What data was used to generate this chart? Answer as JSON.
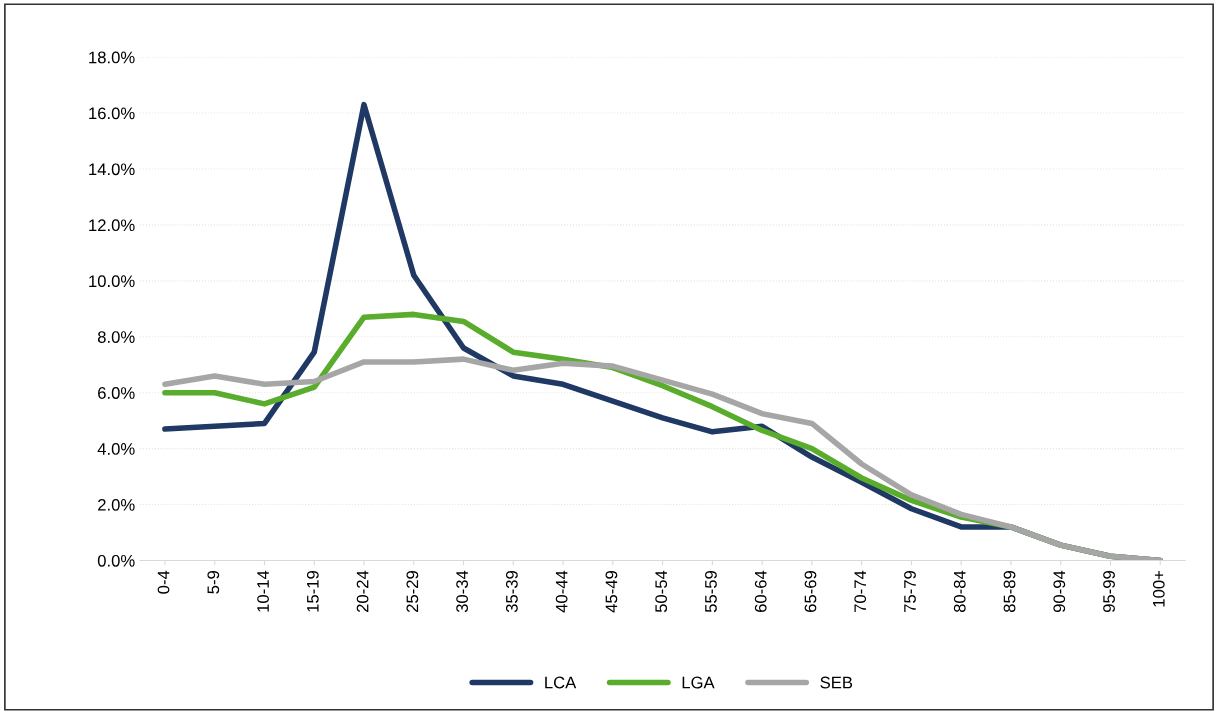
{
  "chart_data": {
    "type": "line",
    "categories": [
      "0-4",
      "5-9",
      "10-14",
      "15-19",
      "20-24",
      "25-29",
      "30-34",
      "35-39",
      "40-44",
      "45-49",
      "50-54",
      "55-59",
      "60-64",
      "65-69",
      "70-74",
      "75-79",
      "80-84",
      "85-89",
      "90-94",
      "95-99",
      "100+"
    ],
    "series": [
      {
        "name": "LCA",
        "color": "#1f3864",
        "values": [
          4.7,
          4.8,
          4.9,
          7.45,
          16.3,
          10.2,
          7.6,
          6.6,
          6.3,
          5.7,
          5.1,
          4.6,
          4.8,
          3.7,
          2.8,
          1.85,
          1.2,
          1.2,
          0.55,
          0.15,
          0.0
        ]
      },
      {
        "name": "LGA",
        "color": "#5aac2c",
        "values": [
          6.0,
          6.0,
          5.6,
          6.2,
          8.7,
          8.8,
          8.55,
          7.45,
          7.2,
          6.9,
          6.25,
          5.5,
          4.65,
          4.0,
          2.95,
          2.15,
          1.55,
          1.2,
          0.55,
          0.15,
          0.0
        ]
      },
      {
        "name": "SEB",
        "color": "#a6a6a6",
        "values": [
          6.3,
          6.6,
          6.3,
          6.4,
          7.1,
          7.1,
          7.2,
          6.8,
          7.05,
          6.95,
          6.45,
          5.95,
          5.25,
          4.9,
          3.45,
          2.35,
          1.65,
          1.2,
          0.55,
          0.15,
          0.0
        ]
      }
    ],
    "ylim": [
      0,
      18
    ],
    "yticks": [
      {
        "value": 0,
        "label": "0.0%"
      },
      {
        "value": 2,
        "label": "2.0%"
      },
      {
        "value": 4,
        "label": "4.0%"
      },
      {
        "value": 6,
        "label": "6.0%"
      },
      {
        "value": 8,
        "label": "8.0%"
      },
      {
        "value": 10,
        "label": "10.0%"
      },
      {
        "value": 12,
        "label": "12.0%"
      },
      {
        "value": 14,
        "label": "14.0%"
      },
      {
        "value": 16,
        "label": "16.0%"
      },
      {
        "value": 18,
        "label": "18.0%"
      }
    ],
    "grid": "y",
    "legend": "bottom",
    "marker": "none",
    "line_style": "solid"
  }
}
